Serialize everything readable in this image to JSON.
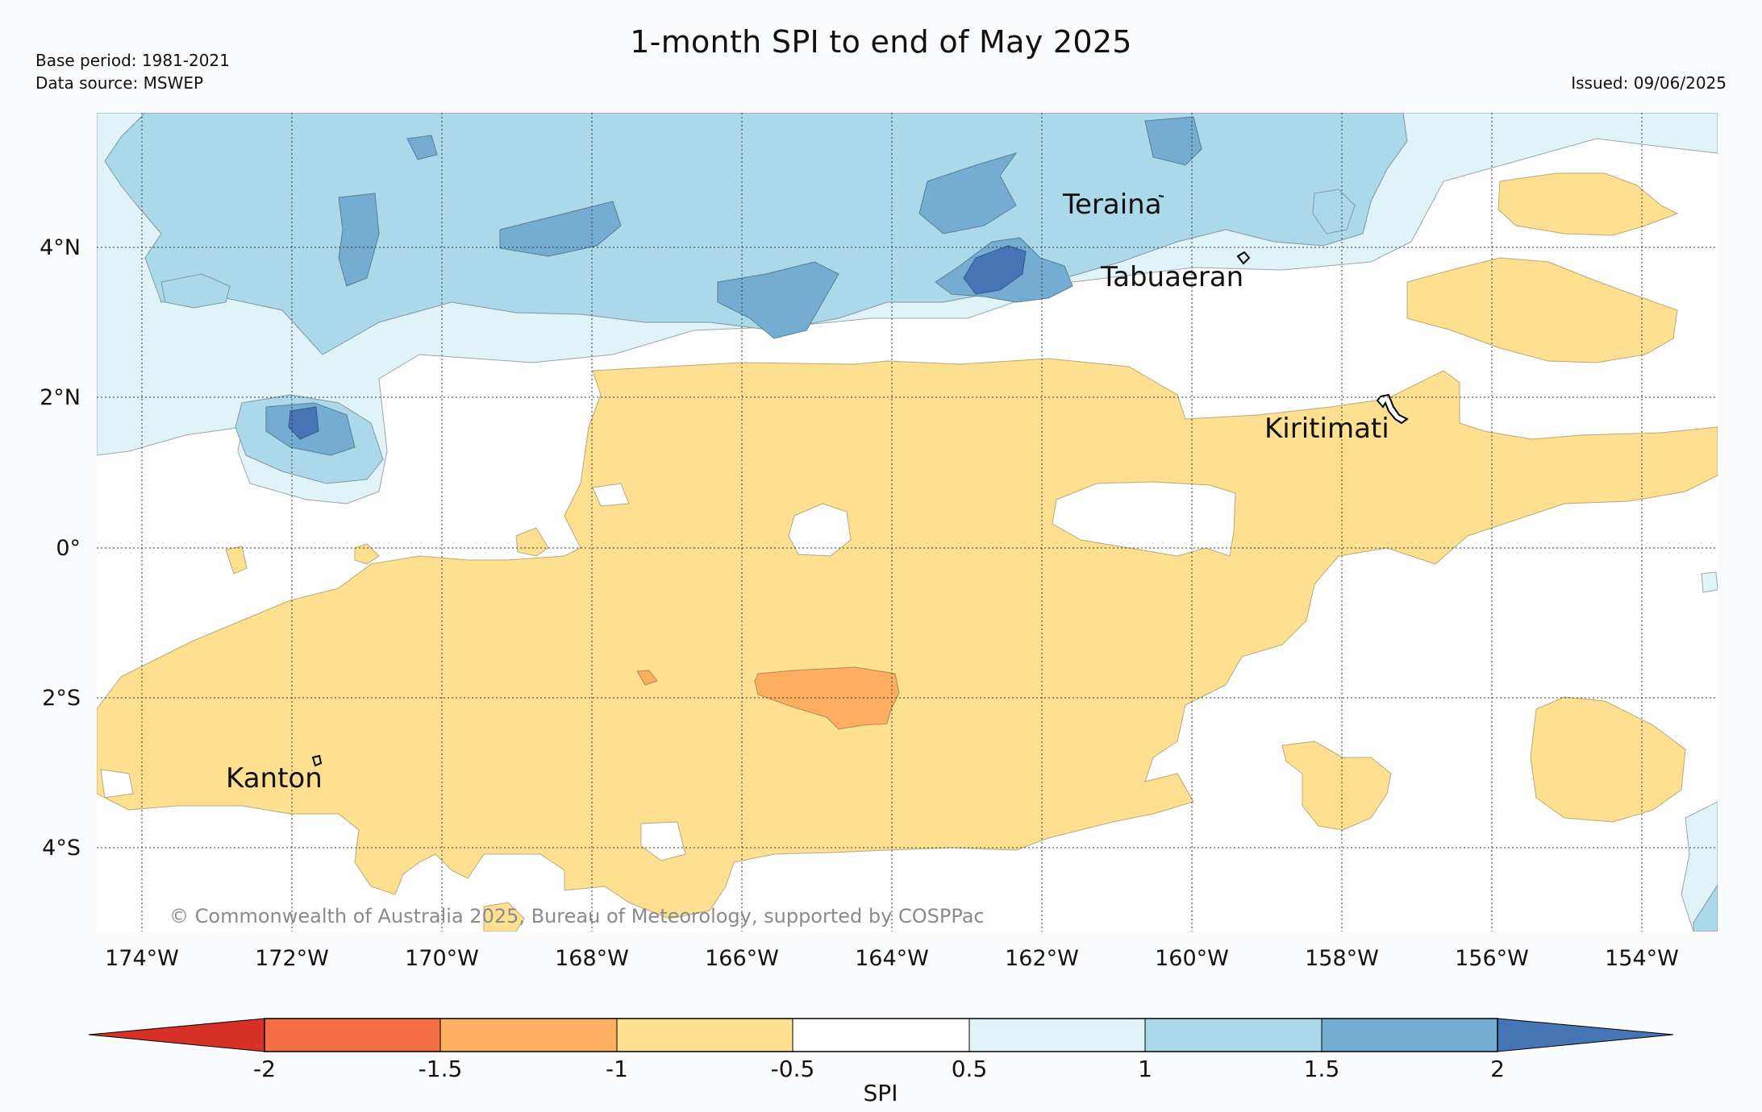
{
  "title": "1-month SPI to end of May 2025",
  "meta": {
    "base_period": "Base period: 1981-2021",
    "data_source": "Data source: MSWEP",
    "issued": "Issued: 09/06/2025"
  },
  "map": {
    "longitude_labels": [
      "174°W",
      "172°W",
      "170°W",
      "168°W",
      "166°W",
      "164°W",
      "162°W",
      "160°W",
      "158°W",
      "156°W",
      "154°W"
    ],
    "latitude_labels": [
      "4°N",
      "2°N",
      "0°",
      "2°S",
      "4°S"
    ],
    "places": [
      "Teraina",
      "Tabuaeran",
      "Kiritimati",
      "Kanton"
    ],
    "credit": "© Commonwealth of Australia 2025, Bureau of Meteorology, supported by COSPPac"
  },
  "colorbar": {
    "label": "SPI",
    "ticks": [
      "-2",
      "-1.5",
      "-1",
      "-0.5",
      "0.5",
      "1",
      "1.5",
      "2"
    ],
    "colors": {
      "below_-2": "#d73027",
      "-2_to_-1.5": "#f46d43",
      "-1.5_to_-1": "#fdae61",
      "-1_to_-0.5": "#fee090",
      "-0.5_to_0.5": "#ffffff",
      "0.5_to_1": "#e0f3f8",
      "1_to_1.5": "#abd9e9",
      "1.5_to_2": "#74add1",
      "above_2": "#4575b4"
    }
  }
}
